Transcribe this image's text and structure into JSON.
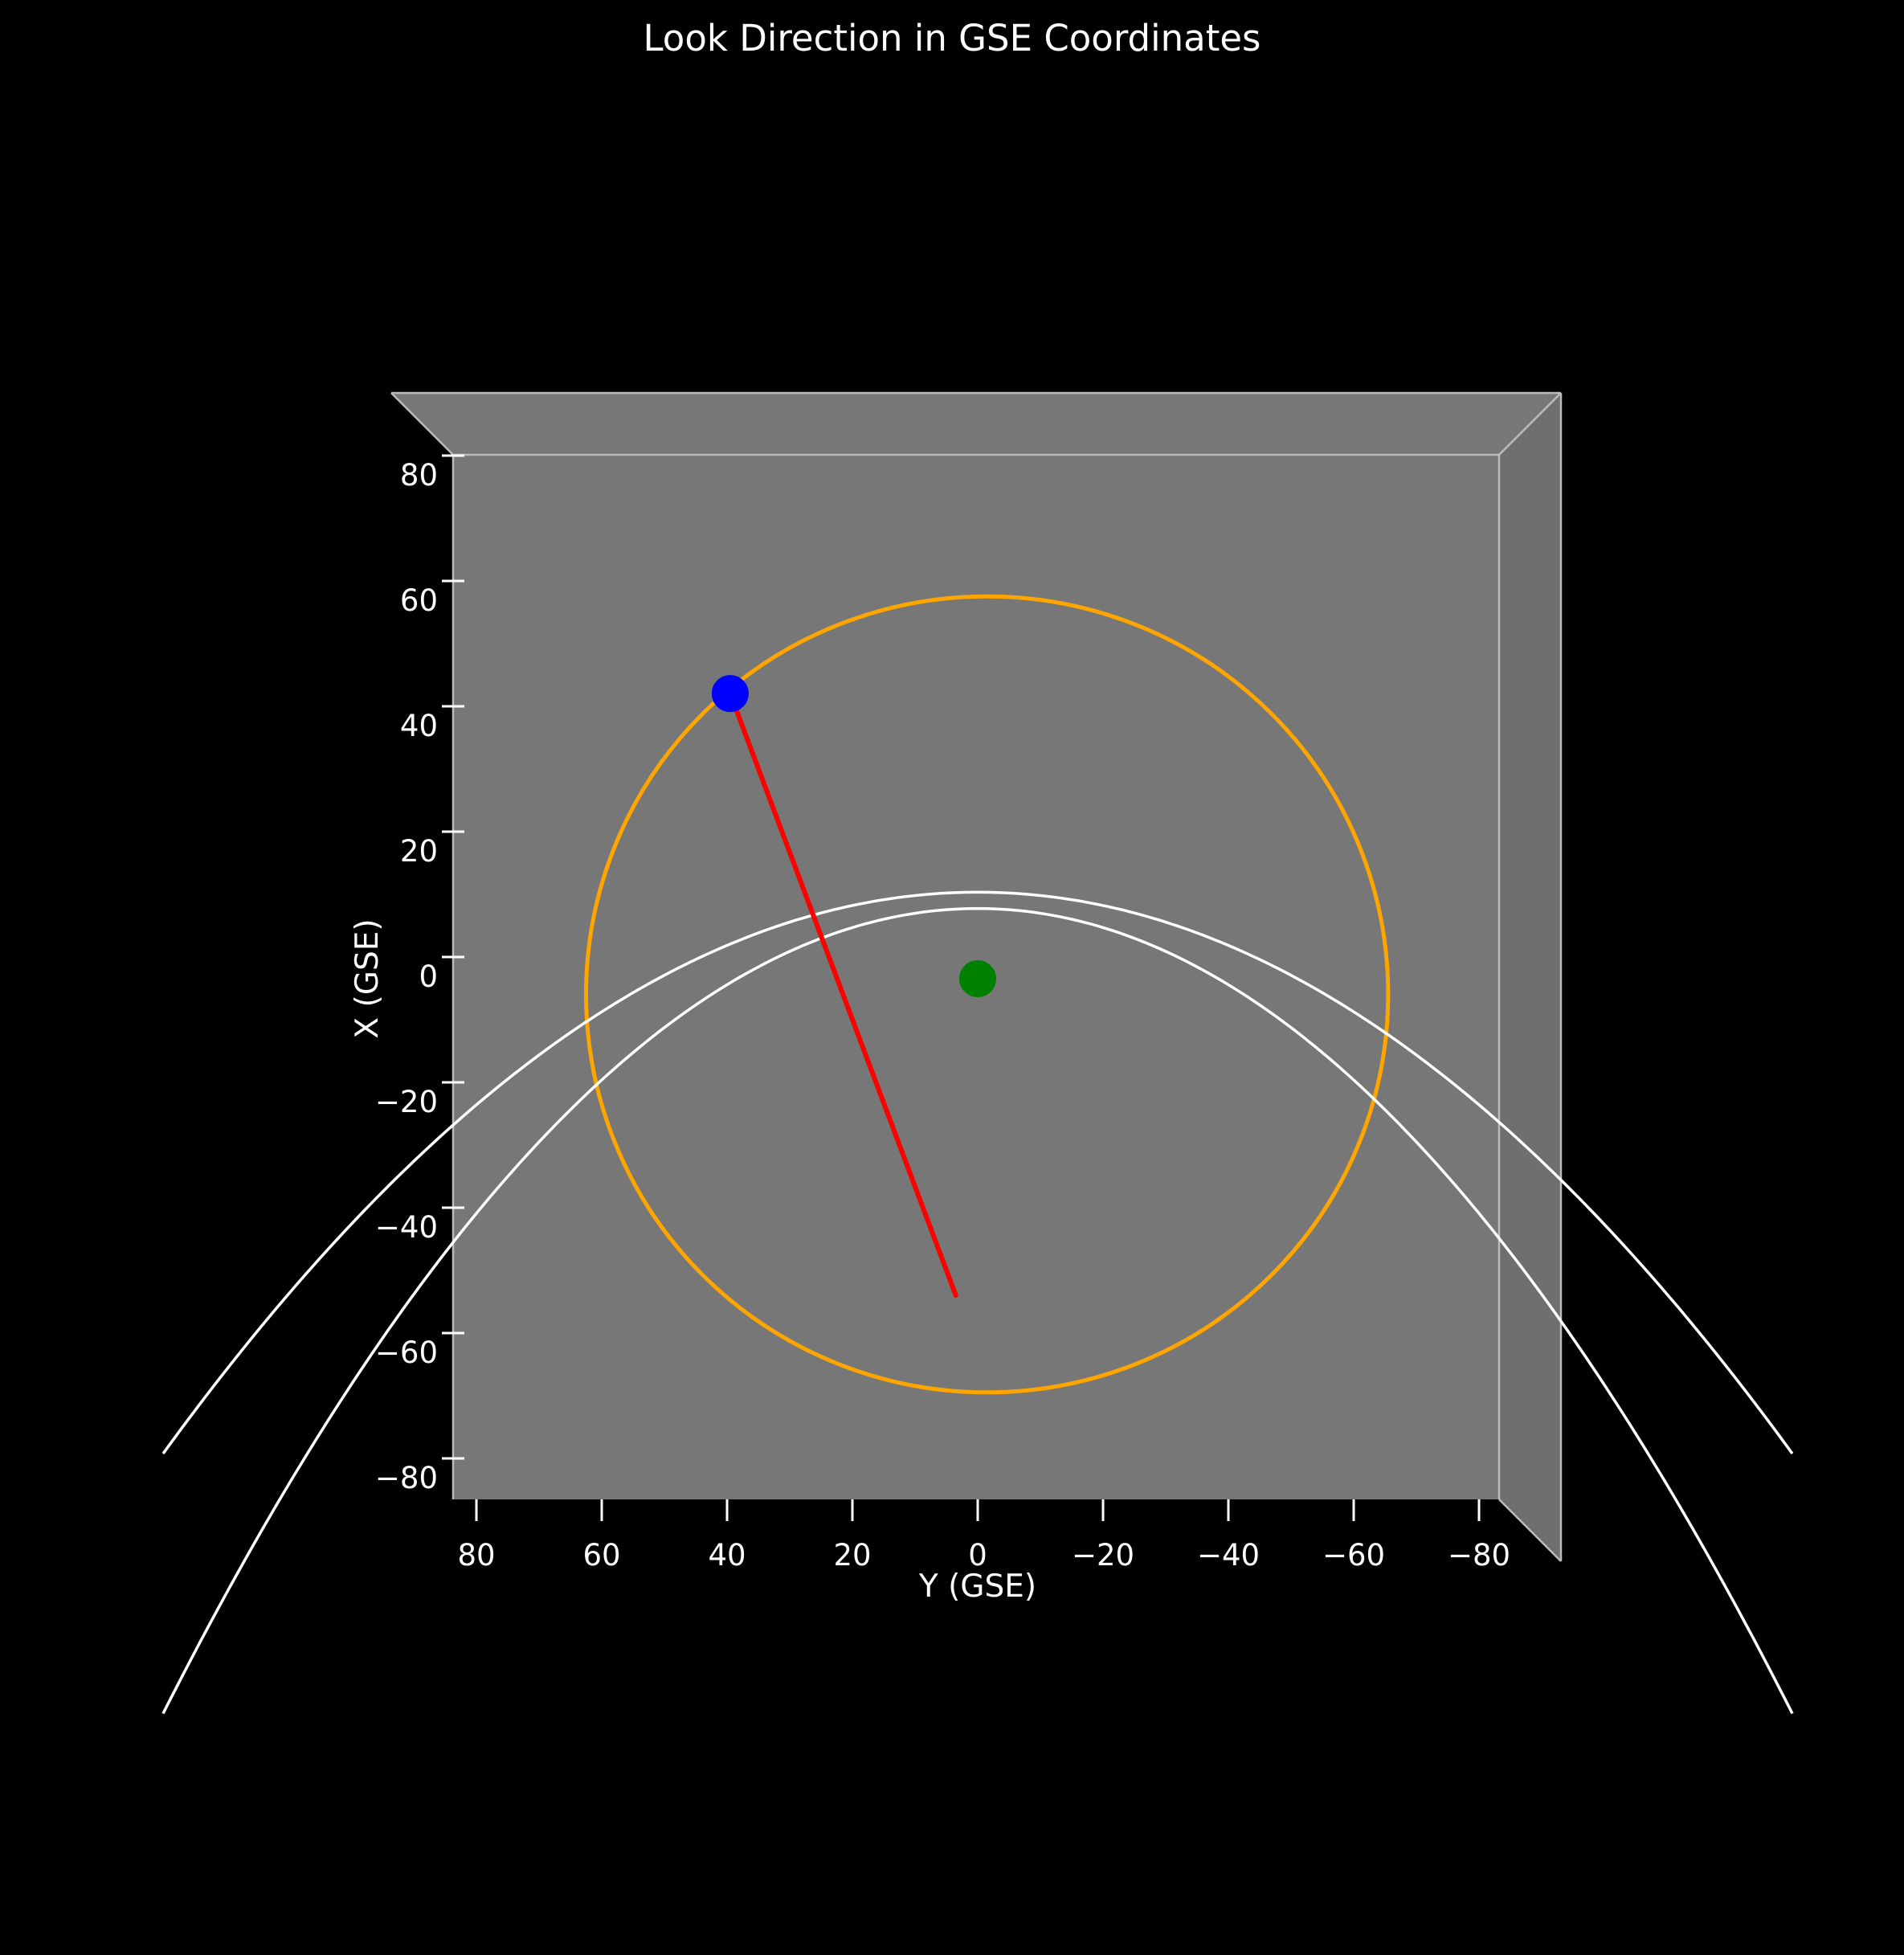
{
  "chart_data": {
    "type": "line",
    "title": "Look Direction in GSE Coordinates",
    "xlabel": "Y (GSE)",
    "ylabel": "X (GSE)",
    "xlim": [
      83,
      -83
    ],
    "ylim": [
      -83,
      83
    ],
    "x_ticks": [
      80,
      60,
      40,
      20,
      0,
      -20,
      -40,
      -60,
      -80
    ],
    "x_tick_labels": [
      "80",
      "60",
      "40",
      "20",
      "0",
      "−20",
      "−40",
      "−60",
      "−80"
    ],
    "y_ticks": [
      80,
      60,
      40,
      20,
      0,
      -20,
      -40,
      -60,
      -80
    ],
    "y_tick_labels": [
      "80",
      "60",
      "40",
      "20",
      "0",
      "−20",
      "−40",
      "−60",
      "−80"
    ],
    "grid": false,
    "series": [
      {
        "kind": "circle",
        "center": {
          "y": -1.5,
          "x": -2.5
        },
        "radius_y": 64,
        "radius_x": 63.5,
        "color": "#ffa500"
      },
      {
        "kind": "parabola",
        "nose_x": 13.8,
        "flare": 0.0053,
        "y_extent": 130,
        "color": "#ffffff"
      },
      {
        "kind": "parabola",
        "nose_x": 11.2,
        "flare": 0.0076,
        "y_extent": 130,
        "color": "#ffffff"
      },
      {
        "kind": "segment",
        "from": {
          "y": 39.5,
          "x": 45.5
        },
        "to": {
          "y": 3.5,
          "x": -50.5
        },
        "color": "#ff0000"
      },
      {
        "kind": "point",
        "at": {
          "y": 39.5,
          "x": 45.5
        },
        "color": "#0000ff"
      },
      {
        "kind": "point",
        "at": {
          "y": 0,
          "x": 0
        },
        "color": "#008000"
      }
    ],
    "colors": {
      "background": "#000000",
      "pane": "#777777",
      "pane_edge": "#bbbbbb",
      "text": "#ffffff"
    }
  }
}
